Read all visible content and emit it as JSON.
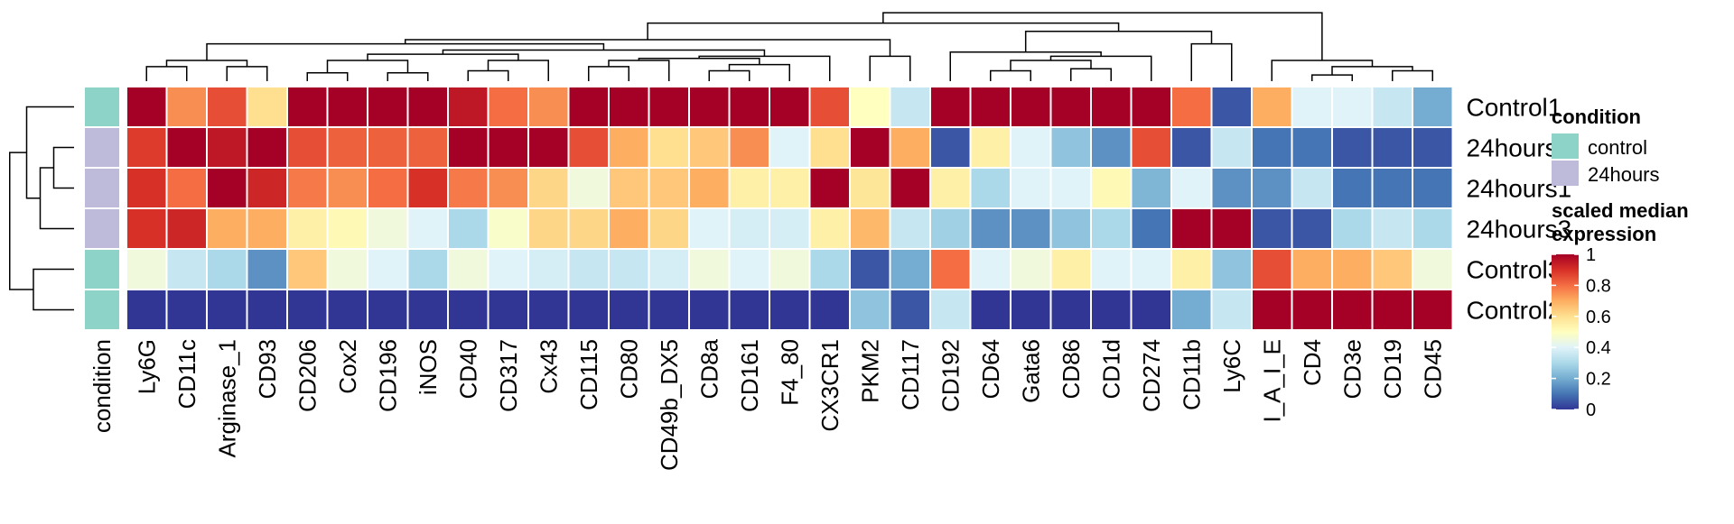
{
  "chart_data": {
    "type": "heatmap",
    "rows": [
      "Control1",
      "24hours2",
      "24hours1",
      "24hours3",
      "Control3",
      "Control2"
    ],
    "row_condition": [
      "control",
      "24hours",
      "24hours",
      "24hours",
      "control",
      "control"
    ],
    "annotation_label": "condition",
    "columns": [
      "Ly6G",
      "CD11c",
      "Arginase_1",
      "CD93",
      "CD206",
      "Cox2",
      "CD196",
      "iNOS",
      "CD40",
      "CD317",
      "Cx43",
      "CD115",
      "CD80",
      "CD49b_DX5",
      "CD8a",
      "CD161",
      "F4_80",
      "CX3CR1",
      "PKM2",
      "CD117",
      "CD192",
      "CD64",
      "Gata6",
      "CD86",
      "CD1d",
      "CD274",
      "CD11b",
      "Ly6C",
      "I_A_I_E",
      "CD4",
      "CD3e",
      "CD19",
      "CD45"
    ],
    "values": [
      [
        1.0,
        0.75,
        0.85,
        0.6,
        1.0,
        1.0,
        1.0,
        1.0,
        0.95,
        0.8,
        0.75,
        1.0,
        1.0,
        1.0,
        1.0,
        1.0,
        1.0,
        0.85,
        0.5,
        0.35,
        1.0,
        1.0,
        1.0,
        1.0,
        1.0,
        1.0,
        0.8,
        0.05,
        0.7,
        0.4,
        0.4,
        0.35,
        0.2
      ],
      [
        0.88,
        1.0,
        0.95,
        1.0,
        0.85,
        0.82,
        0.82,
        0.82,
        1.0,
        1.0,
        1.0,
        0.85,
        0.7,
        0.6,
        0.65,
        0.75,
        0.4,
        0.6,
        1.0,
        0.7,
        0.05,
        0.55,
        0.4,
        0.25,
        0.15,
        0.85,
        0.05,
        0.35,
        0.1,
        0.1,
        0.05,
        0.05,
        0.05
      ],
      [
        0.9,
        0.8,
        1.0,
        0.92,
        0.78,
        0.75,
        0.8,
        0.9,
        0.78,
        0.75,
        0.62,
        0.45,
        0.65,
        0.65,
        0.7,
        0.55,
        0.55,
        1.0,
        0.58,
        1.0,
        0.55,
        0.3,
        0.4,
        0.4,
        0.52,
        0.22,
        0.4,
        0.15,
        0.15,
        0.35,
        0.1,
        0.1,
        0.1
      ],
      [
        0.9,
        0.92,
        0.7,
        0.7,
        0.55,
        0.52,
        0.45,
        0.4,
        0.3,
        0.48,
        0.62,
        0.62,
        0.7,
        0.62,
        0.4,
        0.38,
        0.38,
        0.55,
        0.68,
        0.35,
        0.28,
        0.15,
        0.15,
        0.25,
        0.3,
        0.1,
        1.0,
        1.0,
        0.05,
        0.05,
        0.3,
        0.35,
        0.3
      ],
      [
        0.45,
        0.35,
        0.3,
        0.15,
        0.65,
        0.45,
        0.4,
        0.3,
        0.45,
        0.4,
        0.38,
        0.35,
        0.35,
        0.38,
        0.45,
        0.4,
        0.45,
        0.3,
        0.05,
        0.2,
        0.8,
        0.4,
        0.45,
        0.55,
        0.4,
        0.4,
        0.55,
        0.25,
        0.85,
        0.7,
        0.7,
        0.65,
        0.45
      ],
      [
        0.0,
        0.0,
        0.0,
        0.0,
        0.0,
        0.0,
        0.0,
        0.0,
        0.0,
        0.0,
        0.0,
        0.0,
        0.0,
        0.0,
        0.0,
        0.0,
        0.0,
        0.0,
        0.25,
        0.05,
        0.35,
        0.0,
        0.0,
        0.0,
        0.0,
        0.0,
        0.2,
        0.35,
        1.0,
        1.0,
        1.0,
        1.0,
        1.0
      ]
    ],
    "legend": {
      "condition_title": "condition",
      "condition_entries": [
        {
          "name": "control",
          "color": "#8dd3c7"
        },
        {
          "name": "24hours",
          "color": "#bebada"
        }
      ],
      "scale_title_line1": "scaled median",
      "scale_title_line2": "expression",
      "ticks": [
        "1",
        "0.8",
        "0.6",
        "0.4",
        "0.2",
        "0"
      ],
      "tick_values": [
        1,
        0.8,
        0.6,
        0.4,
        0.2,
        0
      ],
      "range": [
        0,
        1
      ],
      "position": "right"
    },
    "colorscale": [
      "#313695",
      "#4575b4",
      "#74add1",
      "#abd9e9",
      "#e0f3f8",
      "#ffffbf",
      "#fee090",
      "#fdae61",
      "#f46d43",
      "#d73027",
      "#a50026"
    ]
  }
}
